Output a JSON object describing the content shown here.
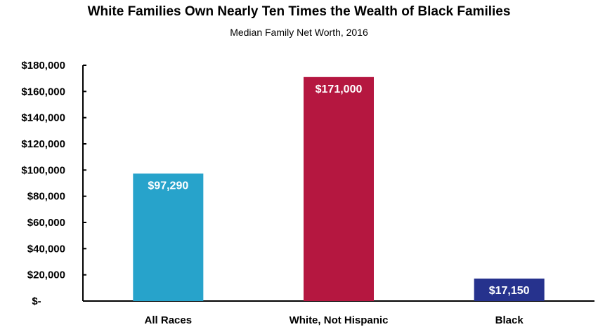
{
  "chart_data": {
    "type": "bar",
    "title": "White Families Own Nearly Ten Times the Wealth of Black Families",
    "subtitle": "Median Family Net Worth, 2016",
    "categories": [
      "All Races",
      "White, Not Hispanic",
      "Black"
    ],
    "values": [
      97290,
      171000,
      17150
    ],
    "data_labels": [
      "$97,290",
      "$171,000",
      "$17,150"
    ],
    "colors": [
      "#27A3CB",
      "#B51740",
      "#26328D"
    ],
    "ylim": [
      0,
      180000
    ],
    "yticks": [
      0,
      20000,
      40000,
      60000,
      80000,
      100000,
      120000,
      140000,
      160000,
      180000
    ],
    "ytick_labels": [
      "$-",
      "$20,000",
      "$40,000",
      "$60,000",
      "$80,000",
      "$100,000",
      "$120,000",
      "$140,000",
      "$160,000",
      "$180,000"
    ],
    "grid": false,
    "legend": "none"
  }
}
